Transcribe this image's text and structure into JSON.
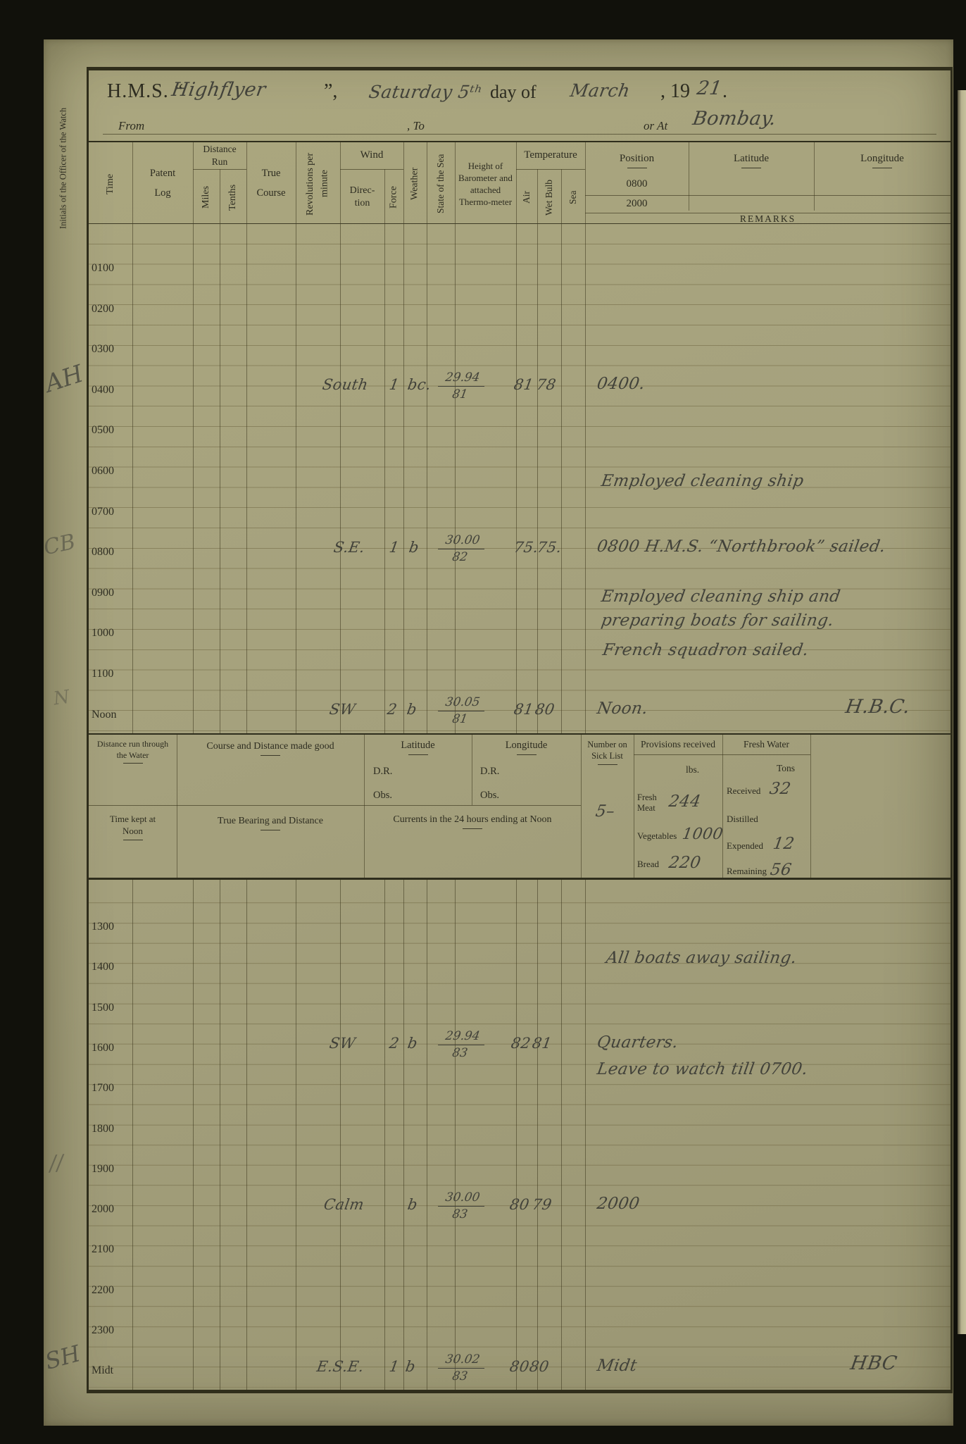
{
  "palette": {
    "page_bg": "#a6a27e",
    "printed_ink": "#2d2c20",
    "hand_ink": "#42423a",
    "rule_line": "#5f5530",
    "frame": "#2f2d1b"
  },
  "header": {
    "hms_prefix": "H.M.S. “",
    "ship_name": "Highflyer",
    "quote_close": "”,",
    "day_name": "Saturday 5ᵗʰ",
    "day_of": "day of",
    "month": "March",
    "year_printed": ", 19",
    "year_hw": "21",
    "period": ".",
    "from_label": "From",
    "to_label": ", To",
    "or_at_label": "or At",
    "location": "Bombay."
  },
  "left_margin": {
    "officer_label": "Initials of the Officer of the Watch",
    "marks": {
      "m1": "AH",
      "m2": "CB",
      "m3": "N",
      "m4": "//",
      "m5": "SH"
    }
  },
  "columns": {
    "time": "Time",
    "patent_log": "Patent Log",
    "distance_run": "Distance Run",
    "miles": "Miles",
    "tenths": "Tenths",
    "true_course": "True Course",
    "revolutions": "Revolutions per minute",
    "wind": "Wind",
    "direction": "Direc-tion",
    "force": "Force",
    "weather": "Weather",
    "state_of_sea": "State of the Sea",
    "barometer": "Height of Barometer and attached Thermo-meter",
    "temperature": "Temperature",
    "air": "Air",
    "wet_bulb": "Wet Bulb",
    "sea": "Sea",
    "position": "Position",
    "pos_0800": "0800",
    "pos_2000": "2000",
    "latitude": "Latitude",
    "longitude": "Longitude",
    "remarks": "REMARKS"
  },
  "am": {
    "times": [
      "0100",
      "0200",
      "0300",
      "0400",
      "0500",
      "0600",
      "0700",
      "0800",
      "0900",
      "1000",
      "1100",
      "Noon"
    ],
    "h0400": {
      "dir": "South",
      "force": "1",
      "wx": "bc.",
      "baro_t": "29.94",
      "baro_b": "81",
      "air": "81",
      "wet": "78",
      "remark": "0400."
    },
    "r0700": "Employed cleaning ship",
    "h0800": {
      "dir": "S.E.",
      "force": "1",
      "wx": "b",
      "baro_t": "30.00",
      "baro_b": "82",
      "air": "75.",
      "wet": "75.",
      "remark": "0800  H.M.S. “Northbrook” sailed."
    },
    "r0900a": "Employed cleaning ship and",
    "r0900b": "preparing boats for sailing.",
    "r1000": "French squadron sailed.",
    "noon": {
      "dir": "SW",
      "force": "2",
      "wx": "b",
      "baro_t": "30.05",
      "baro_b": "81",
      "air": "81",
      "wet": "80",
      "remark": "Noon.",
      "initials": "H.B.C."
    }
  },
  "summary": {
    "dist_water": "Distance run through the Water",
    "course_good": "Course and Distance made good",
    "latitude": "Latitude",
    "longitude": "Longitude",
    "dr": "D.R.",
    "obs": "Obs.",
    "time_kept": "Time kept at Noon",
    "true_bearing": "True Bearing and Distance",
    "currents": "Currents in the 24 hours ending at Noon",
    "sick_label": "Number on Sick List",
    "sick_value": "5–",
    "provisions": "Provisions received",
    "lbs": "lbs.",
    "fresh_meat": "Fresh Meat",
    "fresh_meat_v": "244",
    "vegetables": "Vegetables",
    "vegetables_v": "1000",
    "bread": "Bread",
    "bread_v": "220",
    "fresh_water": "Fresh Water",
    "tons": "Tons",
    "received": "Received",
    "received_v": "32",
    "distilled": "Distilled",
    "expended": "Expended",
    "expended_v": "12",
    "remaining": "Remaining",
    "remaining_v": "56"
  },
  "pm": {
    "times": [
      "1300",
      "1400",
      "1500",
      "1600",
      "1700",
      "1800",
      "1900",
      "2000",
      "2100",
      "2200",
      "2300",
      "Midt"
    ],
    "r1400": "All boats away sailing.",
    "h1600": {
      "dir": "SW",
      "force": "2",
      "wx": "b",
      "baro_t": "29.94",
      "baro_b": "83",
      "air": "82",
      "wet": "81",
      "remark": "Quarters.",
      "remark2": "Leave to watch till 0700."
    },
    "h2000": {
      "dir": "Calm",
      "wx": "b",
      "baro_t": "30.00",
      "baro_b": "83",
      "air": "80",
      "wet": "79",
      "remark": "2000"
    },
    "hmidt": {
      "dir": "E.S.E.",
      "force": "1",
      "wx": "b",
      "baro_t": "30.02",
      "baro_b": "83",
      "air": "80",
      "wet": "80",
      "remark": "Midt",
      "initials": "HBC"
    }
  }
}
